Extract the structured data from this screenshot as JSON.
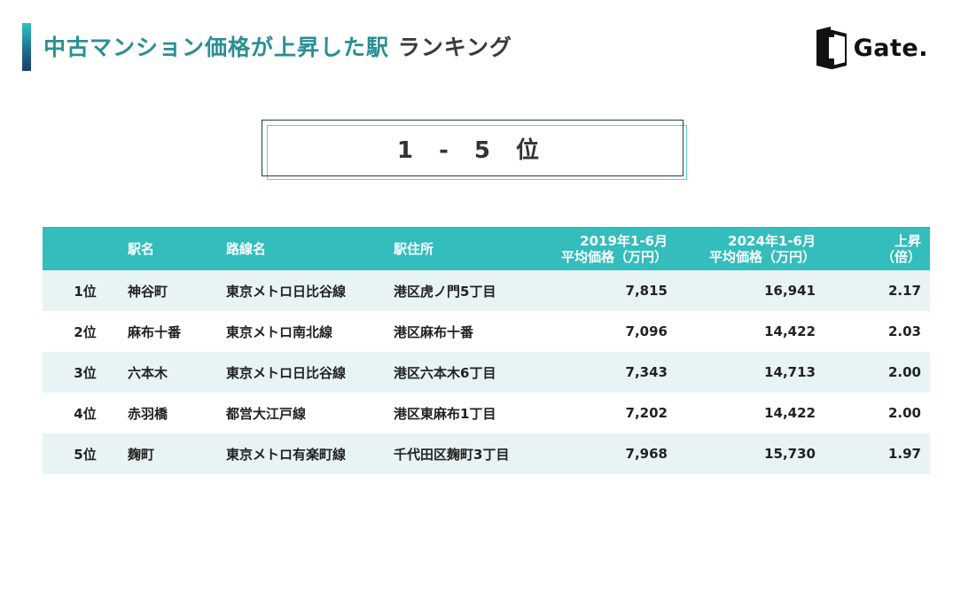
{
  "header": {
    "title_accent": "中古マンション価格が上昇した駅",
    "title_rest": "ランキング",
    "logo_text": "Gate."
  },
  "rank_label": "1 - 5 位",
  "table": {
    "headers": {
      "rank": "",
      "station": "駅名",
      "line": "路線名",
      "address": "駅住所",
      "p2019_l1": "2019年1-6月",
      "p2019_l2": "平均価格（万円）",
      "p2024_l1": "2024年1-6月",
      "p2024_l2": "平均価格（万円）",
      "ratio_l1": "上昇",
      "ratio_l2": "（倍）"
    },
    "rows": [
      {
        "rank": "1位",
        "station": "神谷町",
        "line": "東京メトロ日比谷線",
        "address": "港区虎ノ門5丁目",
        "p2019": "7,815",
        "p2024": "16,941",
        "ratio": "2.17"
      },
      {
        "rank": "2位",
        "station": "麻布十番",
        "line": "東京メトロ南北線",
        "address": "港区麻布十番",
        "p2019": "7,096",
        "p2024": "14,422",
        "ratio": "2.03"
      },
      {
        "rank": "3位",
        "station": "六本木",
        "line": "東京メトロ日比谷線",
        "address": "港区六本木6丁目",
        "p2019": "7,343",
        "p2024": "14,713",
        "ratio": "2.00"
      },
      {
        "rank": "4位",
        "station": "赤羽橋",
        "line": "都営大江戸線",
        "address": "港区東麻布1丁目",
        "p2019": "7,202",
        "p2024": "14,422",
        "ratio": "2.00"
      },
      {
        "rank": "5位",
        "station": "麹町",
        "line": "東京メトロ有楽町線",
        "address": "千代田区麹町3丁目",
        "p2019": "7,968",
        "p2024": "15,730",
        "ratio": "1.97"
      }
    ]
  },
  "colors": {
    "accent": "#2a8f93",
    "header_bg": "#33bdbd",
    "stripe": "#e8f3f3",
    "box_border": "#1f3e4c",
    "box_shadow": "#5fd0cc"
  },
  "icons": {
    "logo": "gate-logo-icon"
  }
}
